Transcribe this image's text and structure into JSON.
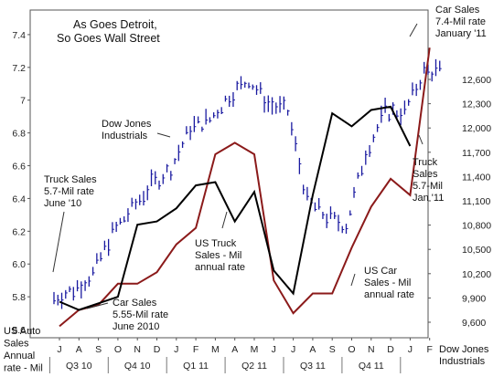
{
  "chart_data": {
    "type": "line",
    "title": [
      "As Goes Detroit,",
      "So Goes Wall Street"
    ],
    "left_axis": {
      "title": [
        "US Auto",
        "Sales",
        "Annual",
        "rate - Mil"
      ],
      "ylim": [
        5.55,
        7.55
      ],
      "ticks": [
        "5.6",
        "5.8",
        "6.0",
        "6.2",
        "6.4",
        "6.6",
        "6.8",
        "7",
        "7.2",
        "7.4"
      ]
    },
    "right_axis": {
      "title": [
        "Dow Jones",
        "Industrials"
      ],
      "ticks": [
        "9,600",
        "9,900",
        "10,200",
        "10,500",
        "10,800",
        "11,100",
        "11,400",
        "11,700",
        "12,000",
        "12,300",
        "12,600"
      ]
    },
    "x_months": [
      "J",
      "A",
      "S",
      "O",
      "N",
      "D",
      "J",
      "F",
      "M",
      "A",
      "M",
      "J",
      "J",
      "A",
      "S",
      "O",
      "N",
      "D",
      "J",
      "F"
    ],
    "quarters": [
      "Q3 10",
      "Q4 10",
      "Q1 11",
      "Q2 11",
      "Q3 11",
      "Q4 11"
    ],
    "series": [
      {
        "name": "US Car Sales - Mil annual rate",
        "color": "#8b1a1a",
        "values": [
          5.62,
          5.72,
          5.75,
          5.88,
          5.88,
          5.95,
          6.12,
          6.22,
          6.67,
          6.74,
          6.67,
          5.9,
          5.7,
          5.82,
          5.82,
          6.1,
          6.35,
          6.52,
          6.42,
          7.32
        ]
      },
      {
        "name": "US Truck Sales - Mil annual rate",
        "color": "#000000",
        "values": [
          5.77,
          5.72,
          5.76,
          5.8,
          6.24,
          6.26,
          6.34,
          6.48,
          6.5,
          6.26,
          6.44,
          5.96,
          5.82,
          6.42,
          6.92,
          6.84,
          6.94,
          6.96,
          6.72,
          null
        ]
      },
      {
        "name": "Dow Jones Industrials",
        "color": "#1a1aa0",
        "values": [
          9900,
          10000,
          10200,
          10700,
          11000,
          11300,
          11500,
          12000,
          12100,
          12400,
          12600,
          12300,
          12200,
          11100,
          10900,
          10800,
          11700,
          12200,
          12200,
          12700
        ]
      }
    ],
    "annotations": [
      {
        "id": "car-sales-jan11",
        "lines": [
          "Car Sales",
          "7.4-Mil rate",
          "January '11"
        ]
      },
      {
        "id": "dow-label",
        "lines": [
          "Dow Jones",
          "Industrials"
        ]
      },
      {
        "id": "truck-sales-jun10",
        "lines": [
          "Truck Sales",
          "5.7-Mil rate",
          "June '10"
        ]
      },
      {
        "id": "car-sales-jun10",
        "lines": [
          "Car Sales",
          "5.55-Mil rate",
          "June 2010"
        ]
      },
      {
        "id": "us-truck-sales",
        "lines": [
          "US Truck",
          "Sales - Mil",
          "annual rate"
        ]
      },
      {
        "id": "us-car-sales",
        "lines": [
          "US Car",
          "Sales - Mil",
          "annual rate"
        ]
      },
      {
        "id": "truck-sales-jan11",
        "lines": [
          "Truck",
          "Sales",
          "5.7-Mil",
          "Jan '11"
        ]
      }
    ]
  }
}
